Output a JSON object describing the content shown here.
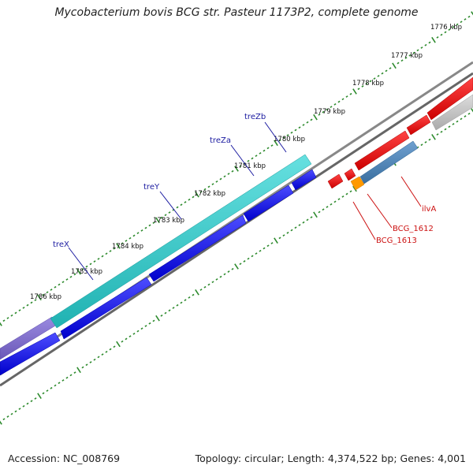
{
  "title": "Mycobacterium bovis BCG str. Pasteur 1173P2, complete genome",
  "footer": {
    "accession": "Accession: NC_008769",
    "summary": "Topology: circular; Length: 4,374,522 bp; Genes: 4,001"
  },
  "ticks": [
    {
      "label": "1776 kbp"
    },
    {
      "label": "1777 kbp"
    },
    {
      "label": "1778 kbp"
    },
    {
      "label": "1779 kbp"
    },
    {
      "label": "1780 kbp"
    },
    {
      "label": "1781 kbp"
    },
    {
      "label": "1782 kbp"
    },
    {
      "label": "1783 kbp"
    },
    {
      "label": "1784 kbp"
    },
    {
      "label": "1785 kbp"
    },
    {
      "label": "1786 kbp"
    }
  ],
  "gene_labels": [
    {
      "name": "treZb",
      "color": "#1a1aa0"
    },
    {
      "name": "treZa",
      "color": "#1a1aa0"
    },
    {
      "name": "treY",
      "color": "#1a1aa0"
    },
    {
      "name": "treX",
      "color": "#1a1aa0"
    },
    {
      "name": "ilvA",
      "color": "#cc1111"
    },
    {
      "name": "BCG_1612",
      "color": "#cc1111"
    },
    {
      "name": "BCG_1613",
      "color": "#cc1111"
    }
  ],
  "colors": {
    "backbone": "#777777",
    "tick": "#2e8b2e",
    "cds_blue": "#0000ee",
    "cds_cyan": "#33cccc",
    "cds_red": "#ee0000",
    "cds_steel": "#4682b4",
    "cds_purple": "#7b68c8",
    "cds_orange": "#ff9900",
    "cds_gray": "#bbbbbb"
  }
}
